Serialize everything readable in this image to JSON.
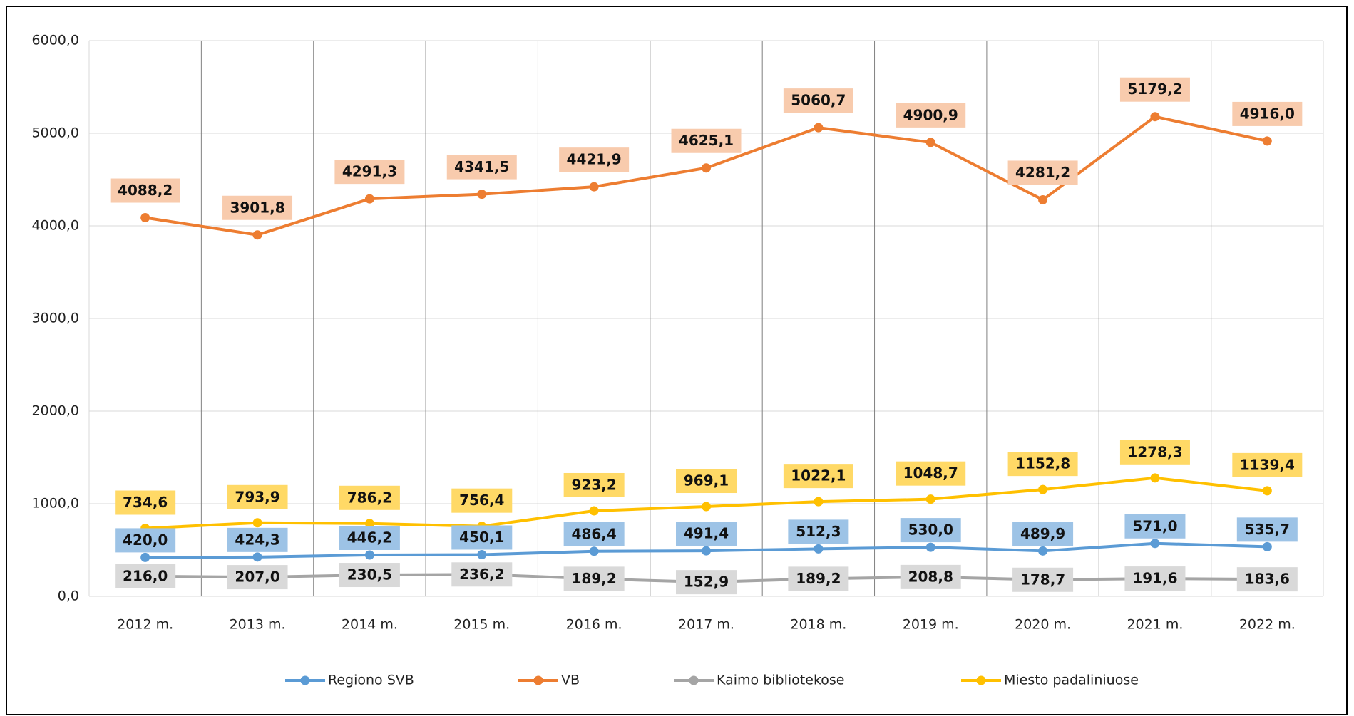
{
  "chart_data": {
    "type": "line",
    "categories": [
      "2012 m.",
      "2013 m.",
      "2014 m.",
      "2015 m.",
      "2016 m.",
      "2017 m.",
      "2018 m.",
      "2019 m.",
      "2020 m.",
      "2021 m.",
      "2022 m."
    ],
    "series": [
      {
        "name": "Regiono SVB",
        "color": "#5b9bd5",
        "label_bg": "#9dc3e6",
        "values": [
          420.0,
          424.3,
          446.2,
          450.1,
          486.4,
          491.4,
          512.3,
          530.0,
          489.9,
          571.0,
          535.7
        ],
        "value_labels": [
          "420,0",
          "424,3",
          "446,2",
          "450,1",
          "486,4",
          "491,4",
          "512,3",
          "530,0",
          "489,9",
          "571,0",
          "535,7"
        ]
      },
      {
        "name": "VB",
        "color": "#ed7d31",
        "label_bg": "#f8cbad",
        "values": [
          4088.2,
          3901.8,
          4291.3,
          4341.5,
          4421.9,
          4625.1,
          5060.7,
          4900.9,
          4281.2,
          5179.2,
          4916.0
        ],
        "value_labels": [
          "4088,2",
          "3901,8",
          "4291,3",
          "4341,5",
          "4421,9",
          "4625,1",
          "5060,7",
          "4900,9",
          "4281,2",
          "5179,2",
          "4916,0"
        ]
      },
      {
        "name": "Kaimo bibliotekose",
        "color": "#a5a5a5",
        "label_bg": "#d9d9d9",
        "values": [
          216.0,
          207.0,
          230.5,
          236.2,
          189.2,
          152.9,
          189.2,
          208.8,
          178.7,
          191.6,
          183.6
        ],
        "value_labels": [
          "216,0",
          "207,0",
          "230,5",
          "236,2",
          "189,2",
          "152,9",
          "189,2",
          "208,8",
          "178,7",
          "191,6",
          "183,6"
        ]
      },
      {
        "name": "Miesto padaliniuose",
        "color": "#ffc000",
        "label_bg": "#ffd966",
        "values": [
          734.6,
          793.9,
          786.2,
          756.4,
          923.2,
          969.1,
          1022.1,
          1048.7,
          1152.8,
          1278.3,
          1139.4
        ],
        "value_labels": [
          "734,6",
          "793,9",
          "786,2",
          "756,4",
          "923,2",
          "969,1",
          "1022,1",
          "1048,7",
          "1152,8",
          "1278,3",
          "1139,4"
        ]
      }
    ],
    "ylim": [
      0,
      6000
    ],
    "yticks": [
      {
        "value": 0,
        "label": "0,0"
      },
      {
        "value": 1000,
        "label": "1000,0"
      },
      {
        "value": 2000,
        "label": "2000,0"
      },
      {
        "value": 3000,
        "label": "3000,0"
      },
      {
        "value": 4000,
        "label": "4000,0"
      },
      {
        "value": 5000,
        "label": "5000,0"
      },
      {
        "value": 6000,
        "label": "6000,0"
      }
    ],
    "grid": true,
    "legend": "bottom"
  }
}
